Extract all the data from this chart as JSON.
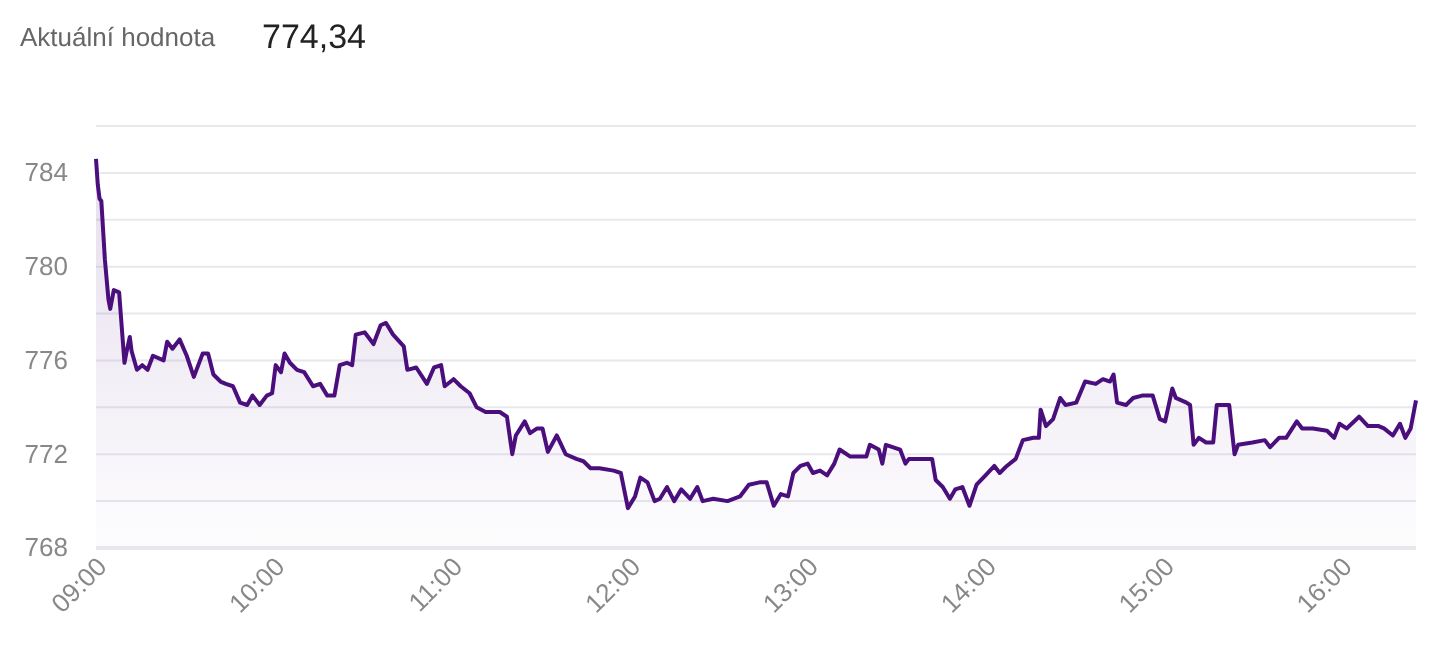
{
  "chart_data": {
    "type": "area",
    "title": "Aktuální hodnota",
    "subtitle": "774,34",
    "x": [
      9.0,
      9.01,
      9.02,
      9.03,
      9.05,
      9.07,
      9.08,
      9.1,
      9.13,
      9.16,
      9.17,
      9.19,
      9.2,
      9.23,
      9.26,
      9.29,
      9.32,
      9.38,
      9.4,
      9.43,
      9.47,
      9.51,
      9.55,
      9.6,
      9.63,
      9.66,
      9.7,
      9.73,
      9.77,
      9.81,
      9.85,
      9.88,
      9.92,
      9.96,
      9.99,
      10.01,
      10.04,
      10.06,
      10.09,
      10.13,
      10.17,
      10.22,
      10.26,
      10.3,
      10.34,
      10.37,
      10.41,
      10.44,
      10.46,
      10.51,
      10.56,
      10.6,
      10.63,
      10.67,
      10.73,
      10.75,
      10.8,
      10.86,
      10.9,
      10.94,
      10.96,
      11.01,
      11.05,
      11.1,
      11.14,
      11.19,
      11.27,
      11.31,
      11.34,
      11.36,
      11.41,
      11.44,
      11.48,
      11.51,
      11.54,
      11.59,
      11.64,
      11.7,
      11.74,
      11.78,
      11.83,
      11.91,
      11.95,
      11.99,
      12.03,
      12.06,
      12.1,
      12.14,
      12.17,
      12.21,
      12.25,
      12.29,
      12.34,
      12.38,
      12.41,
      12.47,
      12.55,
      12.62,
      12.67,
      12.73,
      12.77,
      12.81,
      12.85,
      12.89,
      12.92,
      12.96,
      13.0,
      13.03,
      13.07,
      13.11,
      13.15,
      13.18,
      13.24,
      13.33,
      13.35,
      13.4,
      13.42,
      13.44,
      13.52,
      13.55,
      13.57,
      13.7,
      13.72,
      13.76,
      13.8,
      13.83,
      13.87,
      13.91,
      13.95,
      14.0,
      14.05,
      14.08,
      14.12,
      14.17,
      14.21,
      14.27,
      14.3,
      14.31,
      14.34,
      14.38,
      14.42,
      14.45,
      14.51,
      14.56,
      14.62,
      14.66,
      14.7,
      14.72,
      14.74,
      14.79,
      14.83,
      14.88,
      14.94,
      14.98,
      15.01,
      15.05,
      15.07,
      15.13,
      15.15,
      15.17,
      15.2,
      15.24,
      15.28,
      15.3,
      15.35,
      15.37,
      15.4,
      15.42,
      15.5,
      15.57,
      15.6,
      15.65,
      15.69,
      15.75,
      15.78,
      15.84,
      15.92,
      15.96,
      15.99,
      16.03,
      16.1,
      16.15,
      16.21,
      16.24,
      16.29,
      16.33,
      16.36,
      16.39,
      16.42
    ],
    "series": [
      {
        "color": "#4b0f7d",
        "values": [
          784.6,
          783.5,
          782.9,
          782.8,
          780.3,
          778.6,
          778.2,
          779.0,
          778.9,
          775.9,
          776.3,
          777.0,
          776.4,
          775.6,
          775.8,
          775.6,
          776.2,
          776.0,
          776.8,
          776.5,
          776.9,
          776.2,
          775.3,
          776.3,
          776.3,
          775.4,
          775.1,
          775.0,
          774.9,
          774.2,
          774.1,
          774.5,
          774.1,
          774.5,
          774.6,
          775.8,
          775.5,
          776.3,
          775.9,
          775.6,
          775.5,
          774.9,
          775.0,
          774.5,
          774.5,
          775.8,
          775.9,
          775.8,
          777.1,
          777.2,
          776.7,
          777.5,
          777.6,
          777.1,
          776.6,
          775.6,
          775.7,
          775.0,
          775.7,
          775.8,
          774.9,
          775.2,
          774.9,
          774.6,
          774.0,
          773.8,
          773.8,
          773.6,
          772.0,
          772.8,
          773.4,
          772.9,
          773.1,
          773.1,
          772.1,
          772.8,
          772.0,
          771.8,
          771.7,
          771.4,
          771.4,
          771.3,
          771.2,
          769.7,
          770.2,
          771.0,
          770.8,
          770.0,
          770.1,
          770.6,
          770.0,
          770.5,
          770.1,
          770.6,
          770.0,
          770.1,
          770.0,
          770.2,
          770.7,
          770.8,
          770.8,
          769.8,
          770.3,
          770.2,
          771.2,
          771.5,
          771.6,
          771.2,
          771.3,
          771.1,
          771.6,
          772.2,
          771.9,
          771.9,
          772.4,
          772.2,
          771.6,
          772.4,
          772.2,
          771.6,
          771.8,
          771.8,
          770.9,
          770.6,
          770.1,
          770.5,
          770.6,
          769.8,
          770.7,
          771.1,
          771.5,
          771.2,
          771.5,
          771.8,
          772.6,
          772.7,
          772.7,
          773.9,
          773.2,
          773.5,
          774.4,
          774.1,
          774.2,
          775.1,
          775.0,
          775.2,
          775.1,
          775.4,
          774.2,
          774.1,
          774.4,
          774.5,
          774.5,
          773.5,
          773.4,
          774.8,
          774.4,
          774.2,
          774.1,
          772.4,
          772.7,
          772.5,
          772.5,
          774.1,
          774.1,
          774.1,
          772.0,
          772.4,
          772.5,
          772.6,
          772.3,
          772.7,
          772.7,
          773.4,
          773.1,
          773.1,
          773.0,
          772.7,
          773.3,
          773.1,
          773.6,
          773.2,
          773.2,
          773.1,
          772.8,
          773.3,
          772.7,
          773.1,
          774.3
        ]
      }
    ],
    "xlim": [
      9,
      16.42
    ],
    "xticks": [
      {
        "value": 9,
        "label": "09:00"
      },
      {
        "value": 10,
        "label": "10:00"
      },
      {
        "value": 11,
        "label": "11:00"
      },
      {
        "value": 12,
        "label": "12:00"
      },
      {
        "value": 13,
        "label": "13:00"
      },
      {
        "value": 14,
        "label": "14:00"
      },
      {
        "value": 15,
        "label": "15:00"
      },
      {
        "value": 16,
        "label": "16:00"
      }
    ],
    "ylim": [
      768,
      786
    ],
    "yticks": [
      768,
      {
        "value": 770,
        "label": null
      },
      772,
      {
        "value": 774,
        "label": null
      },
      776,
      {
        "value": 778,
        "label": null
      },
      780,
      {
        "value": 782,
        "label": null
      },
      784,
      {
        "value": 786,
        "label": null
      }
    ],
    "grid": "y",
    "marker": "none",
    "line_style": "solid"
  }
}
